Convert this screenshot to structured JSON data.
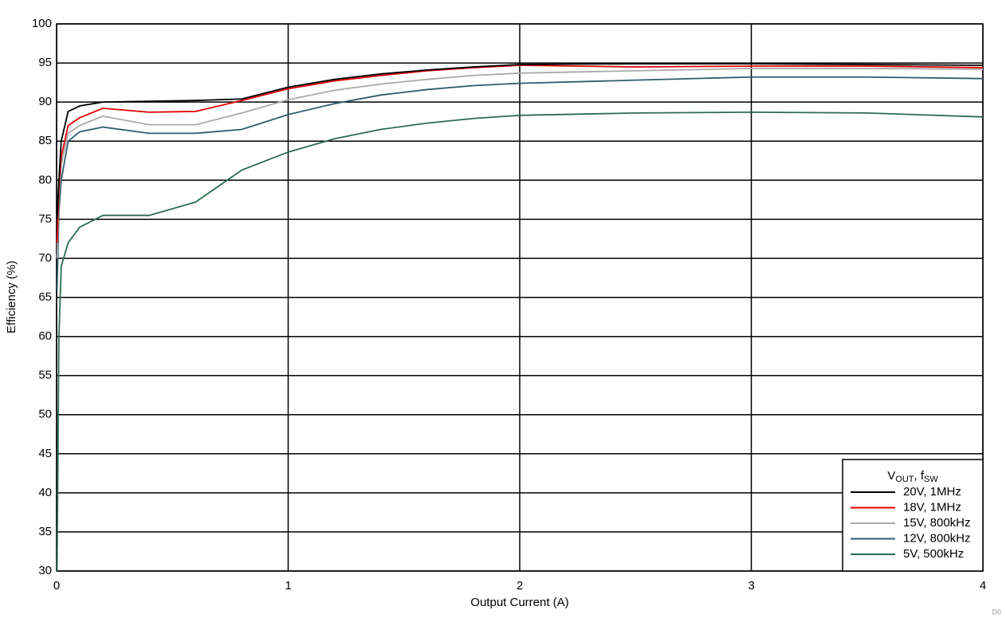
{
  "chart_data": {
    "type": "line",
    "x_label": "Output Current (A)",
    "y_label": "Efficiency (%)",
    "legend_title": [
      "V",
      "OUT",
      ", f",
      "SW"
    ],
    "figure_id": "D0",
    "x": [
      0.002,
      0.01,
      0.02,
      0.05,
      0.1,
      0.2,
      0.4,
      0.6,
      0.8,
      1,
      1.2,
      1.4,
      1.6,
      1.8,
      2,
      2.5,
      3,
      3.5,
      4
    ],
    "series": [
      {
        "name": "20V, 1MHz",
        "color": "#000000",
        "values": [
          75,
          80,
          85,
          88.8,
          89.5,
          90,
          90.1,
          90.2,
          90.4,
          91.9,
          92.9,
          93.6,
          94.1,
          94.5,
          94.8,
          94.9,
          94.9,
          94.8,
          94.7
        ]
      },
      {
        "name": "18V, 1MHz",
        "color": "#e00000",
        "values": [
          72,
          79,
          83,
          87,
          88,
          89.2,
          88.7,
          88.8,
          90.2,
          91.7,
          92.7,
          93.4,
          94,
          94.4,
          94.7,
          94.5,
          94.6,
          94.6,
          94.4
        ]
      },
      {
        "name": "15V, 800kHz",
        "color": "#aaaaaa",
        "values": [
          70,
          78,
          82,
          86,
          87,
          88.2,
          87.1,
          87.1,
          88.6,
          90.3,
          91.5,
          92.3,
          92.9,
          93.4,
          93.7,
          94,
          94.3,
          94.3,
          94.2
        ]
      },
      {
        "name": "12V, 800kHz",
        "color": "#2e5c6e",
        "values": [
          66,
          76,
          80,
          85,
          86.2,
          86.8,
          86,
          86,
          86.5,
          88.4,
          89.8,
          90.9,
          91.6,
          92.1,
          92.4,
          92.8,
          93.2,
          93.2,
          93
        ]
      },
      {
        "name": "5V, 500kHz",
        "color": "#2d6b4f",
        "values": [
          30,
          60,
          69,
          72,
          74,
          75.5,
          75.5,
          77.2,
          81.3,
          83.6,
          85.3,
          86.5,
          87.3,
          87.9,
          88.3,
          88.6,
          88.7,
          88.6,
          88.1
        ]
      }
    ],
    "xlim": [
      0,
      4
    ],
    "xticks": [
      0,
      1,
      2,
      3,
      4
    ],
    "ylim": [
      30,
      100
    ],
    "yticks": [
      30,
      35,
      40,
      45,
      50,
      55,
      60,
      65,
      70,
      75,
      80,
      85,
      90,
      95,
      100
    ],
    "grid": true,
    "legend": "lower right"
  }
}
